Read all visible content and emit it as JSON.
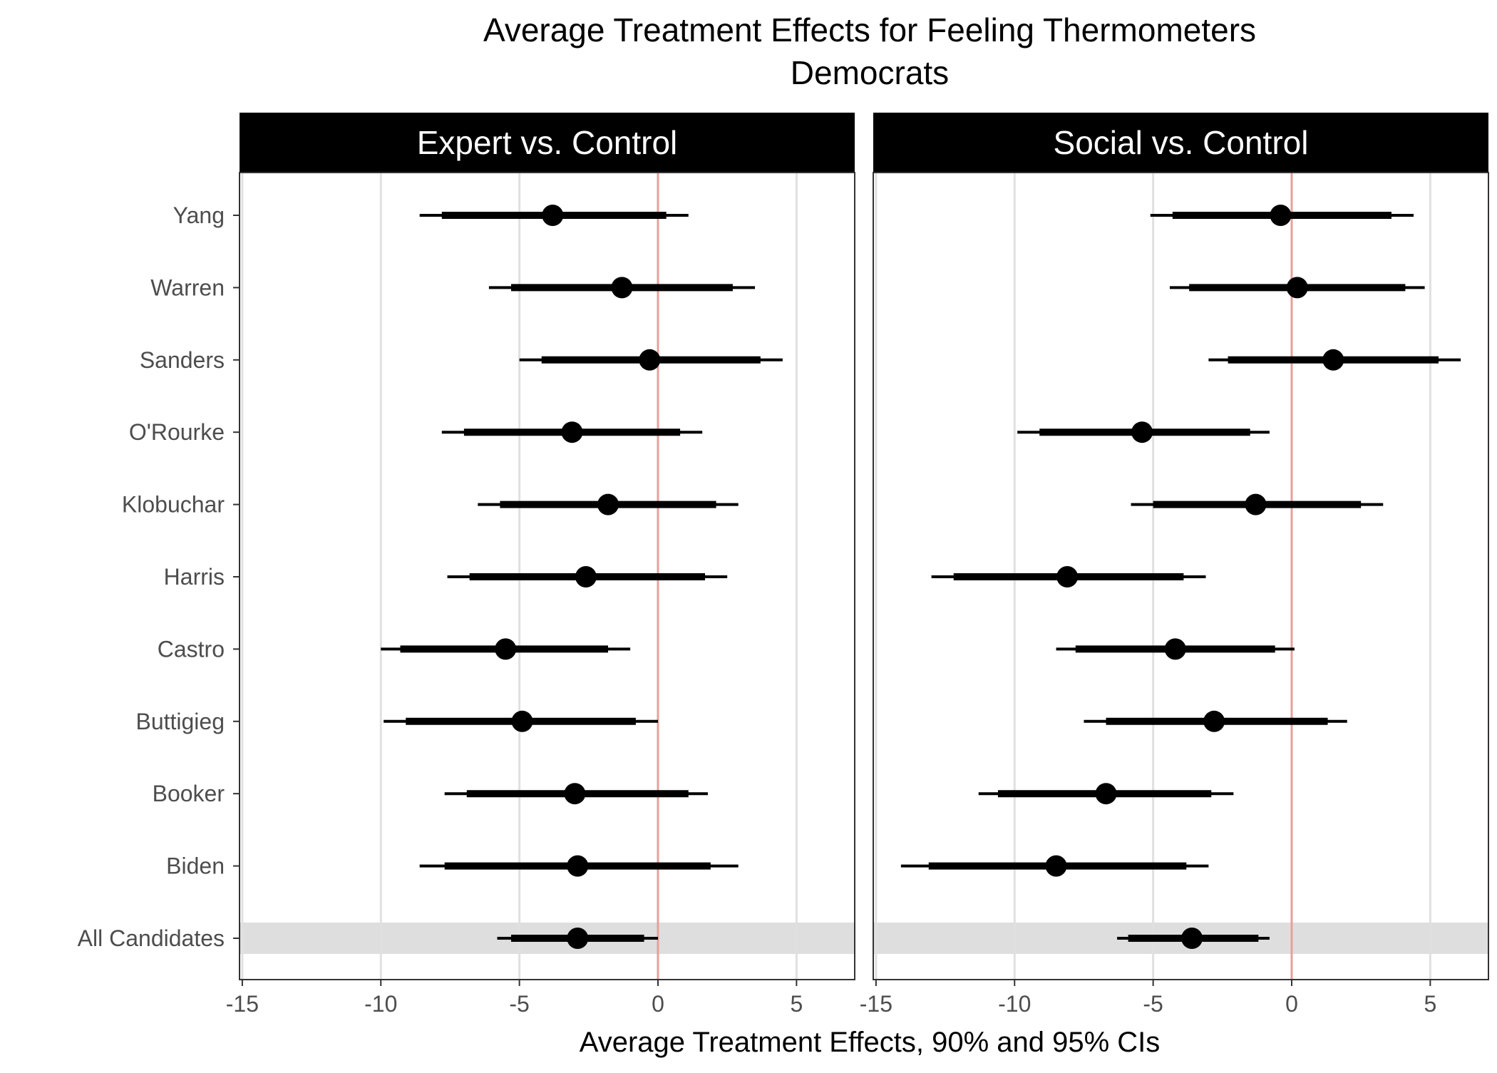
{
  "chart_data": {
    "type": "dotplot-errorbar",
    "title": "Average Treatment Effects for Feeling Thermometers",
    "subtitle": "Democrats",
    "xlabel": "Average Treatment Effects, 90% and 95% CIs",
    "ylabel": "",
    "xlim": [
      -15.1,
      7.1
    ],
    "xticks": [
      -15,
      -10,
      -5,
      0,
      5
    ],
    "xtick_labels": [
      "-15",
      "-10",
      "-5",
      "0",
      "5"
    ],
    "reference_line": 0,
    "reference_color": "#e8a09a",
    "highlight_category": "All Candidates",
    "highlight_color": "#dedede",
    "grid": "vertical-major",
    "categories": [
      "Yang",
      "Warren",
      "Sanders",
      "O'Rourke",
      "Klobuchar",
      "Harris",
      "Castro",
      "Buttigieg",
      "Booker",
      "Biden",
      "All Candidates"
    ],
    "panels": [
      {
        "name": "Expert vs. Control",
        "estimates": [
          -3.8,
          -1.3,
          -0.3,
          -3.1,
          -1.8,
          -2.6,
          -5.5,
          -4.9,
          -3.0,
          -2.9,
          -2.9
        ],
        "ci90_low": [
          -7.8,
          -5.3,
          -4.2,
          -7.0,
          -5.7,
          -6.8,
          -9.3,
          -9.1,
          -6.9,
          -7.7,
          -5.3
        ],
        "ci90_high": [
          0.3,
          2.7,
          3.7,
          0.8,
          2.1,
          1.7,
          -1.8,
          -0.8,
          1.1,
          1.9,
          -0.5
        ],
        "ci95_low": [
          -8.6,
          -6.1,
          -5.0,
          -7.8,
          -6.5,
          -7.6,
          -10.0,
          -9.9,
          -7.7,
          -8.6,
          -5.8
        ],
        "ci95_high": [
          1.1,
          3.5,
          4.5,
          1.6,
          2.9,
          2.5,
          -1.0,
          0.0,
          1.8,
          2.9,
          0.0
        ]
      },
      {
        "name": "Social vs. Control",
        "estimates": [
          -0.4,
          0.2,
          1.5,
          -5.4,
          -1.3,
          -8.1,
          -4.2,
          -2.8,
          -6.7,
          -8.5,
          -3.6
        ],
        "ci90_low": [
          -4.3,
          -3.7,
          -2.3,
          -9.1,
          -5.0,
          -12.2,
          -7.8,
          -6.7,
          -10.6,
          -13.1,
          -5.9
        ],
        "ci90_high": [
          3.6,
          4.1,
          5.3,
          -1.5,
          2.5,
          -3.9,
          -0.6,
          1.3,
          -2.9,
          -3.8,
          -1.2
        ],
        "ci95_low": [
          -5.1,
          -4.4,
          -3.0,
          -9.9,
          -5.8,
          -13.0,
          -8.5,
          -7.5,
          -11.3,
          -14.1,
          -6.3
        ],
        "ci95_high": [
          4.4,
          4.8,
          6.1,
          -0.8,
          3.3,
          -3.1,
          0.1,
          2.0,
          -2.1,
          -3.0,
          -0.8
        ]
      }
    ]
  }
}
